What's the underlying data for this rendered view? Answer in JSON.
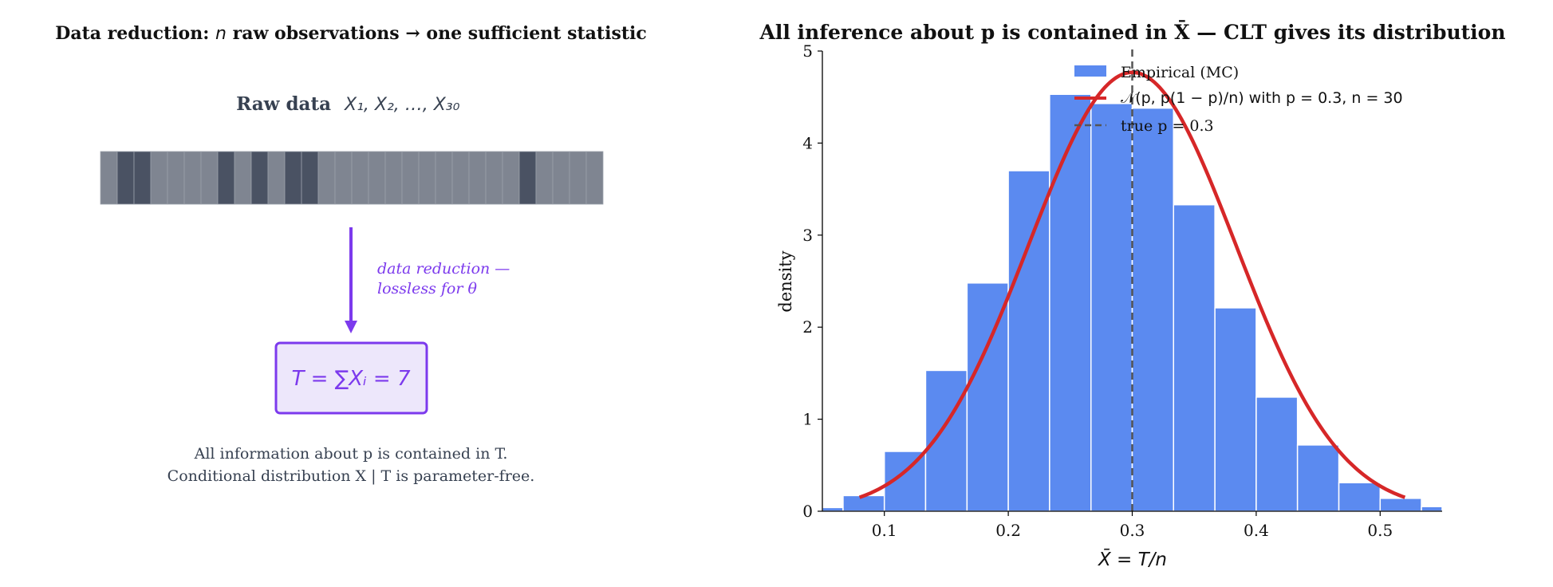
{
  "left_panel": {
    "title": "Data reduction: n raw observations → one sufficient statistic",
    "title_parts": {
      "pre": "Data reduction: ",
      "var": "n",
      "post": " raw observations → one sufficient statistic"
    },
    "raw_label": "Raw data",
    "raw_vars": "X₁, X₂, …, X₃₀",
    "observations": [
      0,
      1,
      1,
      0,
      0,
      0,
      0,
      1,
      0,
      1,
      0,
      1,
      1,
      0,
      0,
      0,
      0,
      0,
      0,
      0,
      0,
      0,
      0,
      0,
      0,
      1,
      0,
      0,
      0,
      0
    ],
    "arrow_label_line1": "data reduction —",
    "arrow_label_line2": "lossless for θ",
    "statistic": "T = ∑Xᵢ = 7",
    "caption_line1": "All information about p is contained in T.",
    "caption_line2": "Conditional distribution X | T is parameter-free.",
    "colors": {
      "cell_zero": "#7f8591",
      "cell_one": "#4a5263",
      "accent": "#7c3aed",
      "box_fill": "#ede7fb",
      "text": "#374151"
    }
  },
  "chart_data": {
    "type": "bar",
    "title": "All inference about p is contained in X̄ — CLT gives its distribution",
    "xlabel": "X̄ = T/n",
    "ylabel": "density",
    "xlim": [
      0.05,
      0.55
    ],
    "ylim": [
      0,
      5
    ],
    "xticks": [
      0.1,
      0.2,
      0.3,
      0.4,
      0.5
    ],
    "yticks": [
      0,
      1,
      2,
      3,
      4,
      5
    ],
    "bin_edges": [
      0.0333,
      0.0667,
      0.1,
      0.1333,
      0.1667,
      0.2,
      0.2333,
      0.2667,
      0.3,
      0.3333,
      0.3667,
      0.4,
      0.4333,
      0.4667,
      0.5,
      0.5333,
      0.5667
    ],
    "values": [
      0.04,
      0.17,
      0.65,
      1.53,
      2.48,
      3.7,
      4.53,
      4.43,
      4.38,
      3.33,
      2.21,
      1.24,
      0.72,
      0.31,
      0.14,
      0.05
    ],
    "normal_curve": {
      "mean": 0.3,
      "n": 30,
      "x_range": [
        0.08,
        0.52
      ]
    },
    "true_p": 0.3,
    "grid": false,
    "legend_position": "top-center",
    "legend": [
      {
        "label": "Empirical (MC)",
        "kind": "patch"
      },
      {
        "label": "𝒩(p, p(1 − p)/n)  with p = 0.3, n = 30",
        "kind": "line"
      },
      {
        "label": "true p = 0.3",
        "kind": "dashed"
      }
    ],
    "colors": {
      "bars": "#5b8af0",
      "curve": "#d62728",
      "true_line": "#555555"
    }
  }
}
